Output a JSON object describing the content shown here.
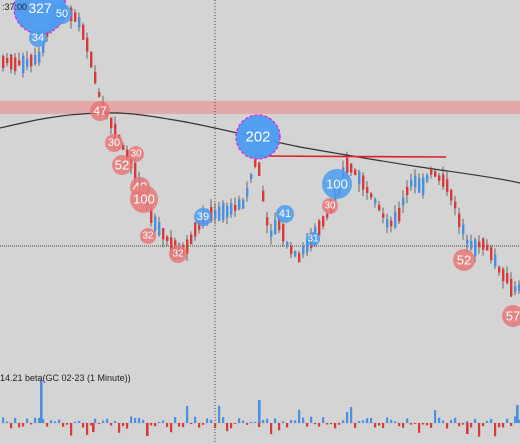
{
  "timestamp": ":37:00",
  "volume_panel_label": "14.21 beta(GC 02-23 (1 Minute))",
  "colors": {
    "background": "#d4d4d4",
    "up_candle": "#4a8fe0",
    "down_candle": "#d83a3a",
    "moving_average": "#333333",
    "resistance_zone": "#e8a0a0",
    "trend_line": "#e02020",
    "crosshair": "#444444",
    "bubble_blue": "#4b9bf0",
    "bubble_red": "#e67878",
    "bubble_highlight_stroke": "#e020e0"
  },
  "bubbles": [
    {
      "label": "327",
      "color": "blue"
    },
    {
      "label": "50",
      "color": "blue"
    },
    {
      "label": "34",
      "color": "blue"
    },
    {
      "label": "47",
      "color": "red"
    },
    {
      "label": "30",
      "color": "red"
    },
    {
      "label": "52",
      "color": "red"
    },
    {
      "label": "30",
      "color": "red"
    },
    {
      "label": "48",
      "color": "red"
    },
    {
      "label": "100",
      "color": "red"
    },
    {
      "label": "32",
      "color": "red"
    },
    {
      "label": "32",
      "color": "red"
    },
    {
      "label": "39",
      "color": "blue"
    },
    {
      "label": "202",
      "color": "blue"
    },
    {
      "label": "41",
      "color": "blue"
    },
    {
      "label": "31",
      "color": "blue"
    },
    {
      "label": "30",
      "color": "red"
    },
    {
      "label": "100",
      "color": "blue"
    },
    {
      "label": "52",
      "color": "red"
    },
    {
      "label": "57",
      "color": "red"
    }
  ]
}
